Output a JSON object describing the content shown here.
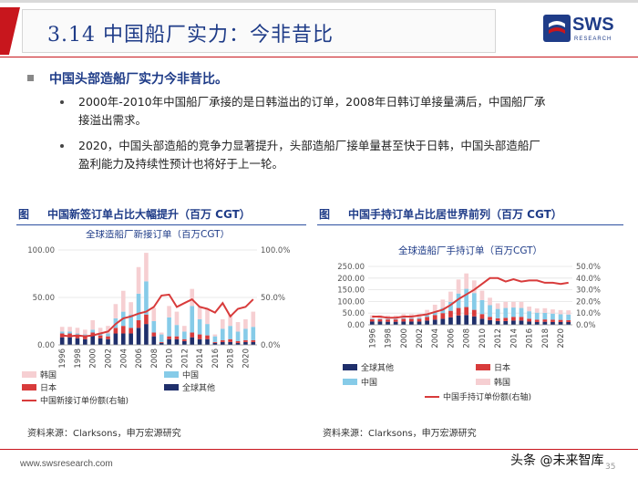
{
  "header": {
    "title": "3.14 中国船厂实力：今非昔比"
  },
  "logo": {
    "text": "SWS",
    "subtext": "RESEARCH"
  },
  "section": {
    "title": "中国头部造船厂实力今非昔比。"
  },
  "bullets": [
    {
      "line1": "2000年-2010年中国船厂承接的是日韩溢出的订单，2008年日韩订单接量满后，中国船厂承",
      "line2": "接溢出需求。"
    },
    {
      "line1": "2020，中国头部造船的竞争力显著提升，头部造船厂接单量甚至快于日韩，中国头部造船厂",
      "line2": "盈利能力及持续性预计也将好于上一轮。"
    }
  ],
  "figures": [
    {
      "prefix": "图",
      "title": "中国新签订单占比大幅提升（百万 CGT）",
      "source": "资料来源：Clarksons，申万宏源研究"
    },
    {
      "prefix": "图",
      "title": "中国手持订单占比居世界前列（百万 CGT）",
      "source": "资料来源：Clarksons，申万宏源研究"
    }
  ],
  "chart_data": [
    {
      "type": "bar",
      "stacked": true,
      "title": "全球造船厂新接订单（百万CGT）",
      "categories": [
        "1996",
        "1997",
        "1998",
        "1999",
        "2000",
        "2001",
        "2002",
        "2003",
        "2004",
        "2005",
        "2006",
        "2007",
        "2008",
        "2009",
        "2010",
        "2011",
        "2012",
        "2013",
        "2014",
        "2015",
        "2016",
        "2017",
        "2018",
        "2019",
        "2020",
        "2021"
      ],
      "x_tick_labels": [
        "1996",
        "1998",
        "2000",
        "2002",
        "2004",
        "2006",
        "2008",
        "2010",
        "2012",
        "2014",
        "2016",
        "2018",
        "2020"
      ],
      "series": [
        {
          "name": "全球其他",
          "color": "#1f2f6b",
          "values": [
            8,
            8,
            7,
            6,
            10,
            7,
            6,
            12,
            12,
            12,
            18,
            22,
            9,
            2,
            6,
            6,
            4,
            8,
            6,
            6,
            2,
            3,
            3,
            2,
            3,
            3
          ]
        },
        {
          "name": "日本",
          "color": "#d83b3b",
          "values": [
            4,
            4,
            3,
            3,
            3,
            3,
            3,
            6,
            8,
            6,
            8,
            10,
            4,
            1,
            3,
            3,
            2,
            5,
            5,
            4,
            1,
            2,
            3,
            2,
            2,
            2
          ]
        },
        {
          "name": "中国",
          "color": "#86cbe8",
          "values": [
            2,
            2,
            2,
            2,
            3,
            2,
            3,
            10,
            15,
            14,
            28,
            35,
            12,
            8,
            20,
            12,
            8,
            28,
            16,
            12,
            6,
            12,
            14,
            10,
            12,
            14
          ]
        },
        {
          "name": "韩国",
          "color": "#f6cfd2",
          "values": [
            5,
            5,
            6,
            5,
            10,
            6,
            8,
            15,
            22,
            13,
            28,
            30,
            14,
            2,
            12,
            14,
            6,
            18,
            14,
            16,
            2,
            10,
            12,
            10,
            10,
            16
          ]
        }
      ],
      "line_series": {
        "name": "中国新接订单份额(右轴)",
        "color": "#d83b3b",
        "values": [
          10,
          9,
          10,
          9,
          10,
          12,
          14,
          22,
          28,
          30,
          33,
          35,
          40,
          52,
          53,
          40,
          44,
          48,
          40,
          38,
          34,
          44,
          30,
          38,
          40,
          48
        ]
      },
      "ylim_left": [
        0,
        100
      ],
      "left_ticks": [
        "0.00",
        "50.00",
        "100.00"
      ],
      "ylim_right": [
        0,
        100
      ],
      "right_ticks": [
        "0.0%",
        "50.0%",
        "100.0%"
      ]
    },
    {
      "type": "bar",
      "stacked": true,
      "title": "全球造船厂手持订单（百万CGT）",
      "categories": [
        "1996",
        "1997",
        "1998",
        "1999",
        "2000",
        "2001",
        "2002",
        "2003",
        "2004",
        "2005",
        "2006",
        "2007",
        "2008",
        "2009",
        "2010",
        "2011",
        "2012",
        "2013",
        "2014",
        "2015",
        "2016",
        "2017",
        "2018",
        "2019",
        "2020",
        "2021"
      ],
      "x_tick_labels": [
        "1996",
        "1998",
        "2000",
        "2002",
        "2004",
        "2006",
        "2008",
        "2010",
        "2012",
        "2014",
        "2016",
        "2018",
        "2020"
      ],
      "series": [
        {
          "name": "全球其他",
          "color": "#1f2f6b",
          "values": [
            14,
            14,
            13,
            13,
            14,
            14,
            14,
            18,
            22,
            26,
            32,
            40,
            42,
            36,
            26,
            20,
            16,
            16,
            18,
            18,
            14,
            12,
            13,
            12,
            12,
            12
          ]
        },
        {
          "name": "日本",
          "color": "#d83b3b",
          "values": [
            10,
            10,
            10,
            10,
            12,
            12,
            12,
            16,
            20,
            24,
            28,
            32,
            34,
            28,
            20,
            14,
            12,
            14,
            16,
            16,
            12,
            10,
            10,
            10,
            9,
            8
          ]
        },
        {
          "name": "中国",
          "color": "#86cbe8",
          "values": [
            3,
            3,
            3,
            3,
            4,
            4,
            5,
            8,
            14,
            22,
            38,
            62,
            78,
            72,
            60,
            50,
            40,
            42,
            40,
            38,
            32,
            30,
            28,
            26,
            24,
            24
          ]
        },
        {
          "name": "韩国",
          "color": "#f6cfd2",
          "values": [
            14,
            14,
            14,
            14,
            16,
            16,
            16,
            22,
            30,
            36,
            44,
            60,
            66,
            54,
            40,
            32,
            24,
            26,
            24,
            26,
            20,
            18,
            20,
            18,
            18,
            18
          ]
        }
      ],
      "line_series": {
        "name": "中国手持订单份额(右轴)",
        "color": "#d83b3b",
        "values": [
          7,
          7,
          6,
          6,
          7,
          7,
          8,
          9,
          11,
          13,
          17,
          22,
          26,
          30,
          35,
          40,
          40,
          37,
          39,
          37,
          38,
          38,
          36,
          36,
          35,
          36
        ]
      },
      "ylim_left": [
        0,
        250
      ],
      "left_ticks": [
        "0.00",
        "50.00",
        "100.00",
        "150.00",
        "200.00",
        "250.00"
      ],
      "ylim_right": [
        0,
        50
      ],
      "right_ticks": [
        "0.0%",
        "10.0%",
        "20.0%",
        "30.0%",
        "40.0%",
        "50.0%"
      ]
    }
  ],
  "footer": {
    "url": "www.swsresearch.com",
    "page": "35",
    "watermark": "头条 @未来智库"
  }
}
